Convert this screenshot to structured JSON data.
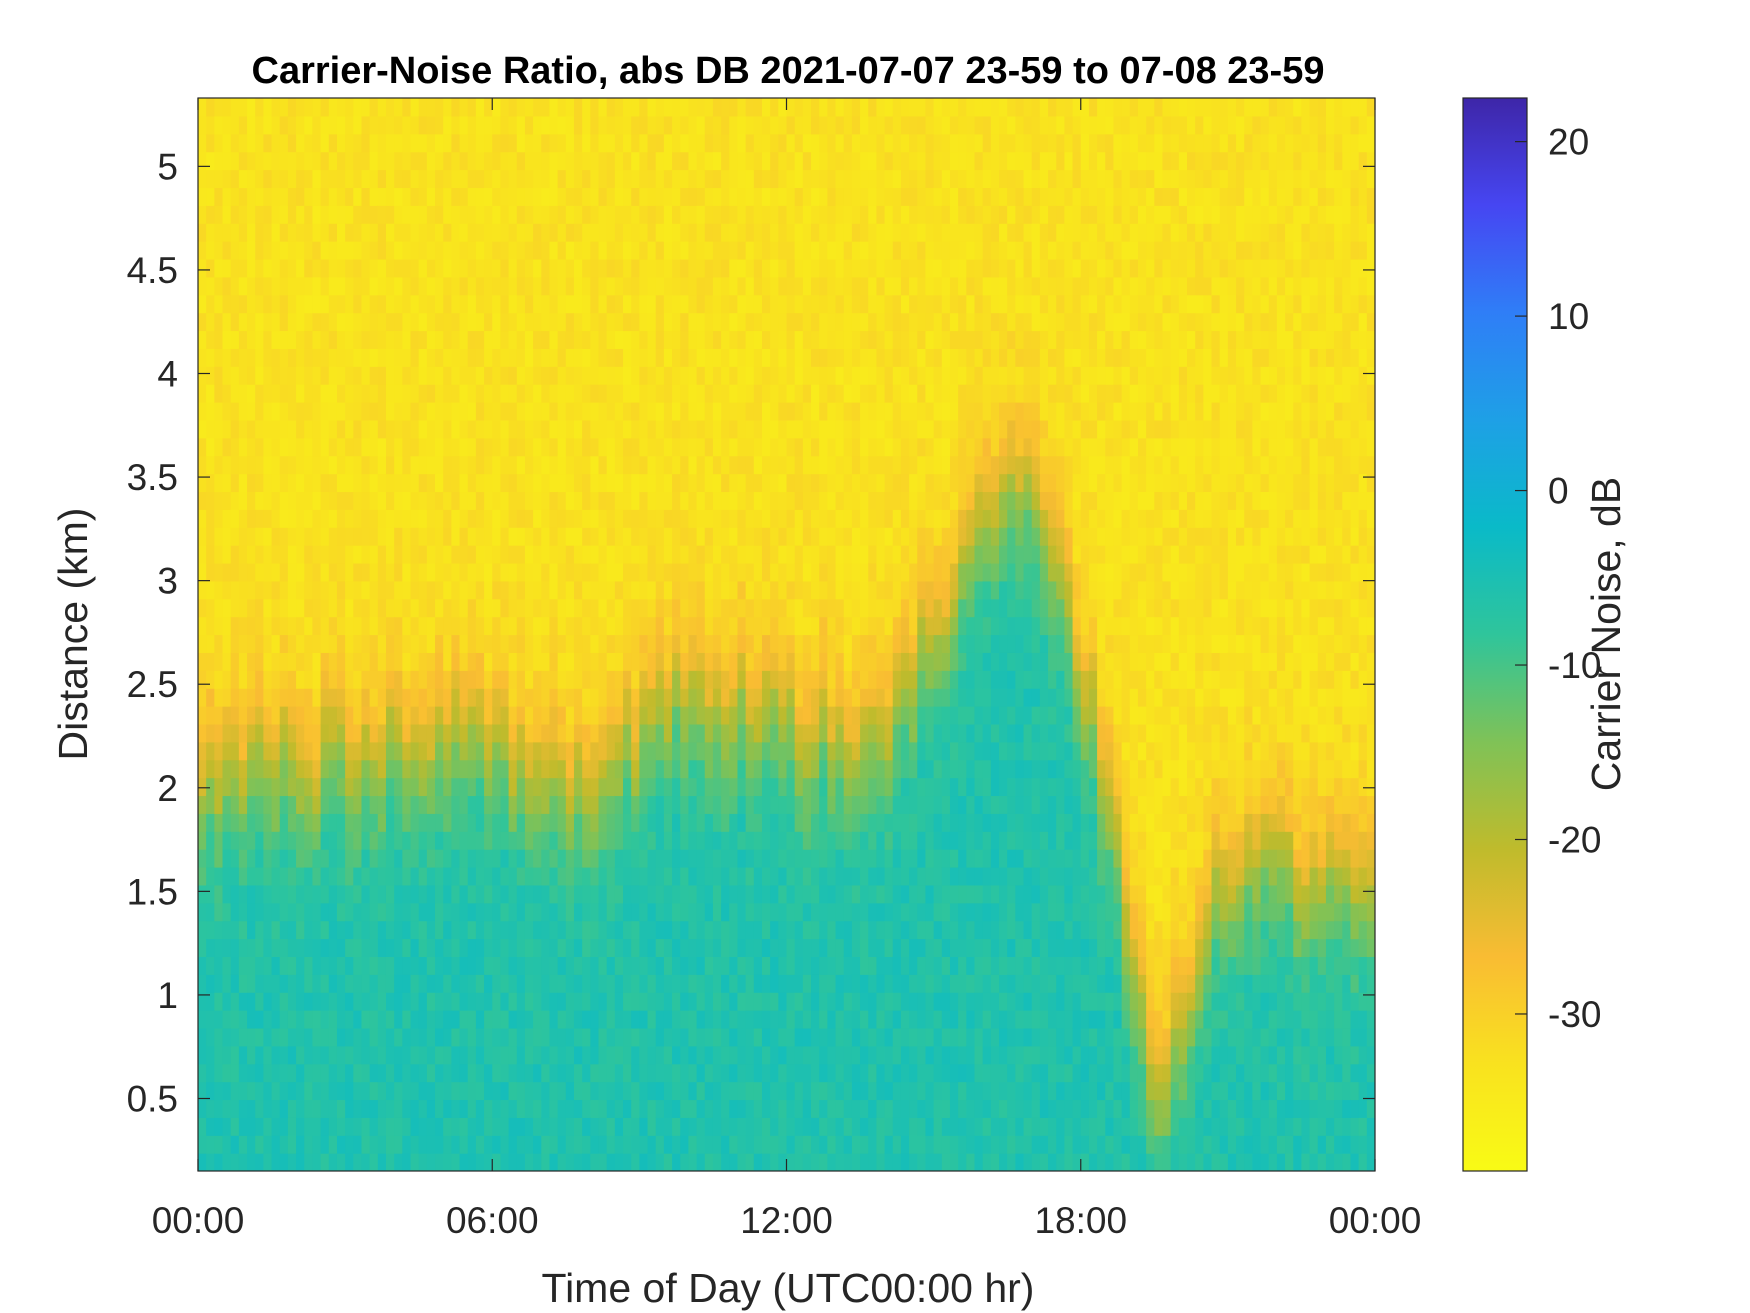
{
  "chart_data": {
    "type": "heatmap",
    "title": "Carrier-Noise Ratio, abs DB 2021-07-07 23-59 to 07-08 23-59",
    "xlabel": "Time of Day (UTC00:00 hr)",
    "ylabel": "Distance (km)",
    "xlim": [
      0,
      24
    ],
    "ylim": [
      0.15,
      5.33
    ],
    "x_ticks": [
      0,
      6,
      12,
      18,
      24
    ],
    "x_tick_labels": [
      "00:00",
      "06:00",
      "12:00",
      "18:00",
      "00:00"
    ],
    "y_ticks": [
      0.5,
      1,
      1.5,
      2,
      2.5,
      3,
      3.5,
      4,
      4.5,
      5
    ],
    "y_tick_labels": [
      "0.5",
      "1",
      "1.5",
      "2",
      "2.5",
      "3",
      "3.5",
      "4",
      "4.5",
      "5"
    ],
    "colorbar": {
      "label": "Carrier Noise, dB",
      "clim": [
        -39,
        22.5
      ],
      "reversed": true,
      "ticks": [
        20,
        10,
        0,
        -10,
        -20,
        -30
      ],
      "tick_labels": [
        "20",
        "10",
        "0",
        "-10",
        "-20",
        "-30"
      ],
      "colormap": [
        "#3e26a8",
        "#4646f2",
        "#2f7ef7",
        "#1ea0e6",
        "#0abac8",
        "#2fc59b",
        "#7fc257",
        "#bfbb2c",
        "#f9bc33",
        "#f9e21f",
        "#f9fb15"
      ]
    },
    "field_estimate": {
      "time_hr": [
        0,
        2,
        4,
        6,
        7,
        8,
        8.7,
        10,
        12,
        14,
        15.5,
        16.5,
        17.5,
        18.5,
        19.5,
        21,
        22.5,
        24
      ],
      "boundary_height_km": [
        2.1,
        2.1,
        2.2,
        2.2,
        2.0,
        2.0,
        2.2,
        2.5,
        2.3,
        2.2,
        3.0,
        3.5,
        3.2,
        2.0,
        0.5,
        1.6,
        1.6,
        1.5
      ],
      "near_surface_db": -6,
      "upper_air_db": -33
    }
  }
}
